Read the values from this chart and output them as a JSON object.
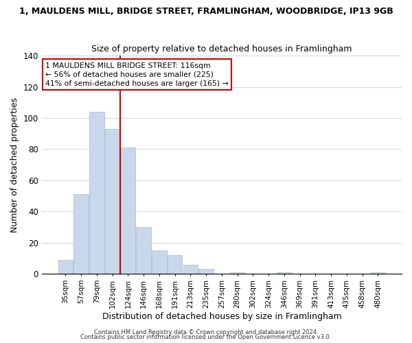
{
  "title": "1, MAULDENS MILL, BRIDGE STREET, FRAMLINGHAM, WOODBRIDGE, IP13 9GB",
  "subtitle": "Size of property relative to detached houses in Framlingham",
  "xlabel": "Distribution of detached houses by size in Framlingham",
  "ylabel": "Number of detached properties",
  "bar_color": "#c8d8ea",
  "bar_edge_color": "#a0b8cc",
  "categories": [
    "35sqm",
    "57sqm",
    "79sqm",
    "102sqm",
    "124sqm",
    "146sqm",
    "168sqm",
    "191sqm",
    "213sqm",
    "235sqm",
    "257sqm",
    "280sqm",
    "302sqm",
    "324sqm",
    "346sqm",
    "369sqm",
    "391sqm",
    "413sqm",
    "435sqm",
    "458sqm",
    "480sqm"
  ],
  "values": [
    9,
    51,
    104,
    93,
    81,
    30,
    15,
    12,
    6,
    3,
    0,
    1,
    0,
    0,
    1,
    0,
    0,
    0,
    0,
    0,
    1
  ],
  "ylim": [
    0,
    140
  ],
  "yticks": [
    0,
    20,
    40,
    60,
    80,
    100,
    120,
    140
  ],
  "vline_color": "#cc0000",
  "annotation_text": "1 MAULDENS MILL BRIDGE STREET: 116sqm\n← 56% of detached houses are smaller (225)\n41% of semi-detached houses are larger (165) →",
  "footer1": "Contains HM Land Registry data © Crown copyright and database right 2024.",
  "footer2": "Contains public sector information licensed under the Open Government Licence v3.0.",
  "background_color": "#ffffff",
  "grid_color": "#d0d8e8"
}
